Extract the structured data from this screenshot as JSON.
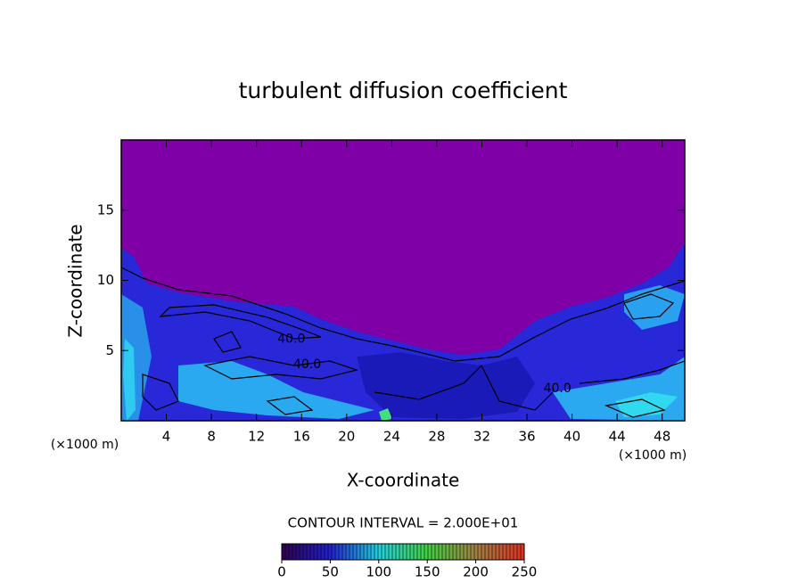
{
  "chart_data": {
    "type": "contour",
    "title": "turbulent diffusion coefficient",
    "x_label": "X-coordinate",
    "y_label": "Z-coordinate",
    "x_unit": "(×1000 m)",
    "y_unit": "(×1000 m)",
    "xlim": [
      0,
      50
    ],
    "xticks": [
      4,
      8,
      12,
      16,
      20,
      24,
      28,
      32,
      36,
      40,
      44,
      48
    ],
    "ylim": [
      0,
      20
    ],
    "yticks": [
      5,
      10,
      15
    ],
    "contour_interval": "CONTOUR INTERVAL = 2.000E+01",
    "contour_labels": [
      {
        "text": "40.0",
        "x": 15.1,
        "y": 5.8
      },
      {
        "text": "40.0",
        "x": 16.5,
        "y": 4.0
      },
      {
        "text": "40.0",
        "x": 38.7,
        "y": 2.3
      }
    ],
    "colorbar": {
      "lim": [
        0,
        250
      ],
      "ticks": [
        0,
        50,
        100,
        150,
        200,
        250
      ]
    }
  }
}
